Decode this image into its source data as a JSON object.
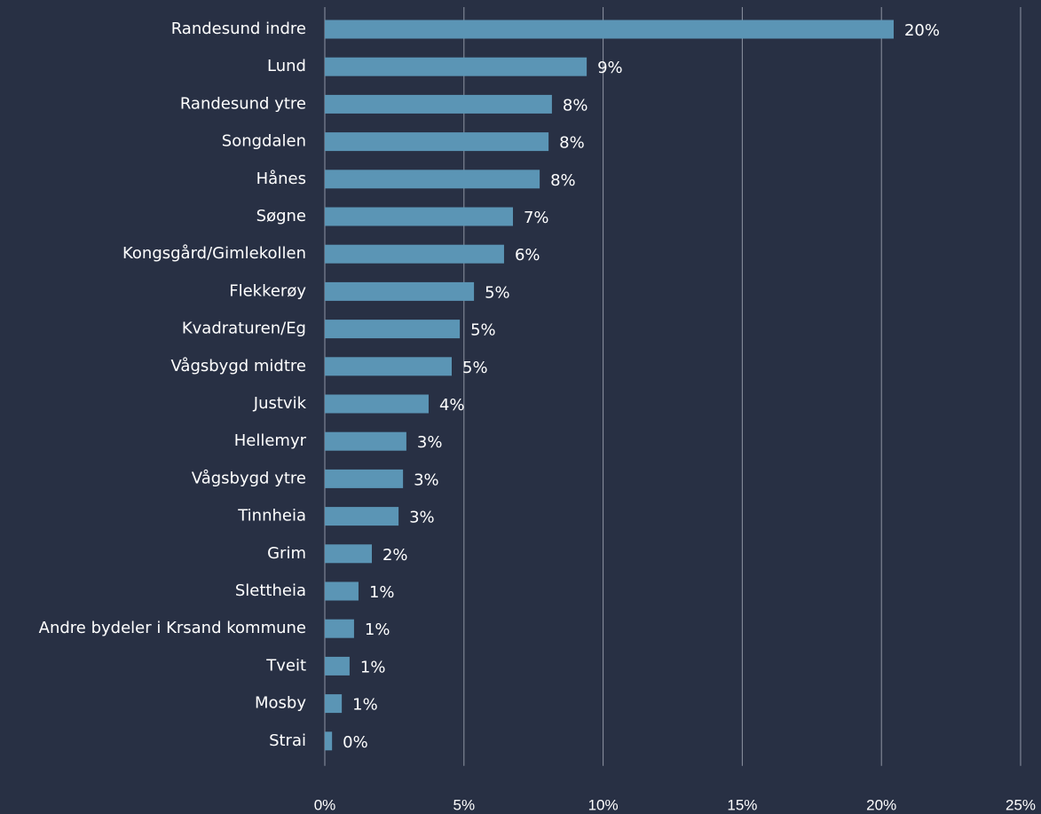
{
  "chart_data": {
    "type": "bar",
    "orientation": "horizontal",
    "categories": [
      "Randesund indre",
      "Lund",
      "Randesund ytre",
      "Songdalen",
      "Hånes",
      "Søgne",
      "Kongsgård/Gimlekollen",
      "Flekkerøy",
      "Kvadraturen/Eg",
      "Vågsbygd midtre",
      "Justvik",
      "Hellemyr",
      "Vågsbygd ytre",
      "Tinnheia",
      "Grim",
      "Slettheia",
      "Andre bydeler i Krsand kommune",
      "Tveit",
      "Mosby",
      "Strai"
    ],
    "values": [
      20.44,
      9.41,
      8.16,
      8.04,
      7.72,
      6.76,
      6.44,
      5.36,
      4.85,
      4.56,
      3.73,
      2.93,
      2.81,
      2.65,
      1.69,
      1.21,
      1.05,
      0.89,
      0.61,
      0.26
    ],
    "value_labels": [
      "20%",
      "9%",
      "8%",
      "8%",
      "8%",
      "7%",
      "6%",
      "5%",
      "5%",
      "5%",
      "4%",
      "3%",
      "3%",
      "3%",
      "2%",
      "1%",
      "1%",
      "1%",
      "1%",
      "0%"
    ],
    "color": "#5b95b5",
    "xlim": [
      0,
      25
    ],
    "xticks": [
      {
        "value": 0,
        "label": "0%"
      },
      {
        "value": 5,
        "label": "5%"
      },
      {
        "value": 10,
        "label": "10%"
      },
      {
        "value": 15,
        "label": "15%"
      },
      {
        "value": 20,
        "label": "20%"
      },
      {
        "value": 25,
        "label": "25%"
      }
    ],
    "grid": true
  }
}
